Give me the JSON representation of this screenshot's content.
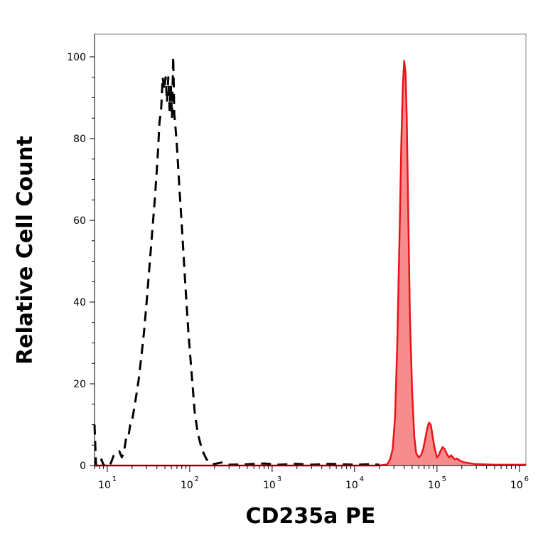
{
  "chart_data": {
    "type": "area",
    "xlabel": "CD235a PE",
    "ylabel": "Relative Cell Count",
    "x_scale": "log",
    "xlim": [
      7,
      1200000
    ],
    "ylim": [
      0,
      100
    ],
    "y_ticks": [
      0,
      20,
      40,
      60,
      80,
      100
    ],
    "x_ticks": [
      {
        "value": 10,
        "base": "10",
        "exp": "1"
      },
      {
        "value": 100,
        "base": "10",
        "exp": "2"
      },
      {
        "value": 1000,
        "base": "10",
        "exp": "3"
      },
      {
        "value": 10000,
        "base": "10",
        "exp": "4"
      },
      {
        "value": 100000,
        "base": "10",
        "exp": "5"
      },
      {
        "value": 1000000,
        "base": "10",
        "exp": "6"
      }
    ],
    "grid": false,
    "legend": "none",
    "series": [
      {
        "style": "dashed",
        "color": "#000000",
        "fill": "none",
        "points": [
          [
            7,
            10
          ],
          [
            7.3,
            0
          ],
          [
            8,
            0
          ],
          [
            8.5,
            1.5
          ],
          [
            9,
            0
          ],
          [
            10,
            1
          ],
          [
            11,
            0.5
          ],
          [
            12,
            2.5
          ],
          [
            13,
            3
          ],
          [
            14,
            3.5
          ],
          [
            15,
            2
          ],
          [
            16,
            3.5
          ],
          [
            17,
            7
          ],
          [
            18,
            7
          ],
          [
            19,
            10
          ],
          [
            20,
            11
          ],
          [
            22,
            16
          ],
          [
            24,
            21
          ],
          [
            26,
            27
          ],
          [
            28,
            33
          ],
          [
            30,
            40
          ],
          [
            32,
            47
          ],
          [
            35,
            57
          ],
          [
            38,
            66
          ],
          [
            41,
            76
          ],
          [
            43,
            84
          ],
          [
            45,
            87
          ],
          [
            47,
            95
          ],
          [
            49,
            92
          ],
          [
            51,
            95
          ],
          [
            53,
            89
          ],
          [
            55,
            95
          ],
          [
            57,
            87
          ],
          [
            59,
            93
          ],
          [
            61,
            85
          ],
          [
            63,
            100
          ],
          [
            65,
            86
          ],
          [
            67,
            83
          ],
          [
            70,
            78
          ],
          [
            75,
            68
          ],
          [
            80,
            59
          ],
          [
            88,
            45
          ],
          [
            96,
            33
          ],
          [
            105,
            23
          ],
          [
            115,
            13
          ],
          [
            125,
            8
          ],
          [
            140,
            4
          ],
          [
            160,
            1.5
          ],
          [
            190,
            0.3
          ],
          [
            250,
            0.8
          ],
          [
            300,
            0.2
          ],
          [
            500,
            0.3
          ],
          [
            800,
            0.5
          ],
          [
            1200,
            0.2
          ],
          [
            2000,
            0.4
          ],
          [
            3000,
            0.2
          ],
          [
            5000,
            0.4
          ],
          [
            7000,
            0.3
          ],
          [
            10000,
            0.2
          ],
          [
            15000,
            0.3
          ],
          [
            20000,
            0.2
          ]
        ]
      },
      {
        "style": "solid",
        "color": "#e8141c",
        "fill": "#f78c8c",
        "points": [
          [
            7,
            0
          ],
          [
            100,
            0
          ],
          [
            1000,
            0
          ],
          [
            10000,
            0
          ],
          [
            20000,
            0
          ],
          [
            25000,
            0.3
          ],
          [
            27000,
            1.5
          ],
          [
            29000,
            4
          ],
          [
            31000,
            12
          ],
          [
            33000,
            30
          ],
          [
            35000,
            55
          ],
          [
            37000,
            80
          ],
          [
            38500,
            93
          ],
          [
            40000,
            99
          ],
          [
            41500,
            96
          ],
          [
            43000,
            85
          ],
          [
            45000,
            60
          ],
          [
            47000,
            36
          ],
          [
            50000,
            18
          ],
          [
            53000,
            7
          ],
          [
            56000,
            3
          ],
          [
            60000,
            2
          ],
          [
            64000,
            2.5
          ],
          [
            68000,
            4
          ],
          [
            72000,
            6.5
          ],
          [
            76000,
            9
          ],
          [
            80000,
            10.5
          ],
          [
            84000,
            10
          ],
          [
            88000,
            7.5
          ],
          [
            93000,
            4.5
          ],
          [
            100000,
            2
          ],
          [
            105000,
            2.5
          ],
          [
            110000,
            3.5
          ],
          [
            117000,
            4.5
          ],
          [
            124000,
            4
          ],
          [
            132000,
            2.8
          ],
          [
            140000,
            2
          ],
          [
            148000,
            2.5
          ],
          [
            156000,
            2
          ],
          [
            165000,
            1.5
          ],
          [
            175000,
            1.7
          ],
          [
            190000,
            1.2
          ],
          [
            210000,
            0.8
          ],
          [
            240000,
            0.6
          ],
          [
            280000,
            0.4
          ],
          [
            350000,
            0.3
          ],
          [
            500000,
            0.2
          ],
          [
            800000,
            0.2
          ],
          [
            1200000,
            0.2
          ]
        ]
      }
    ]
  }
}
